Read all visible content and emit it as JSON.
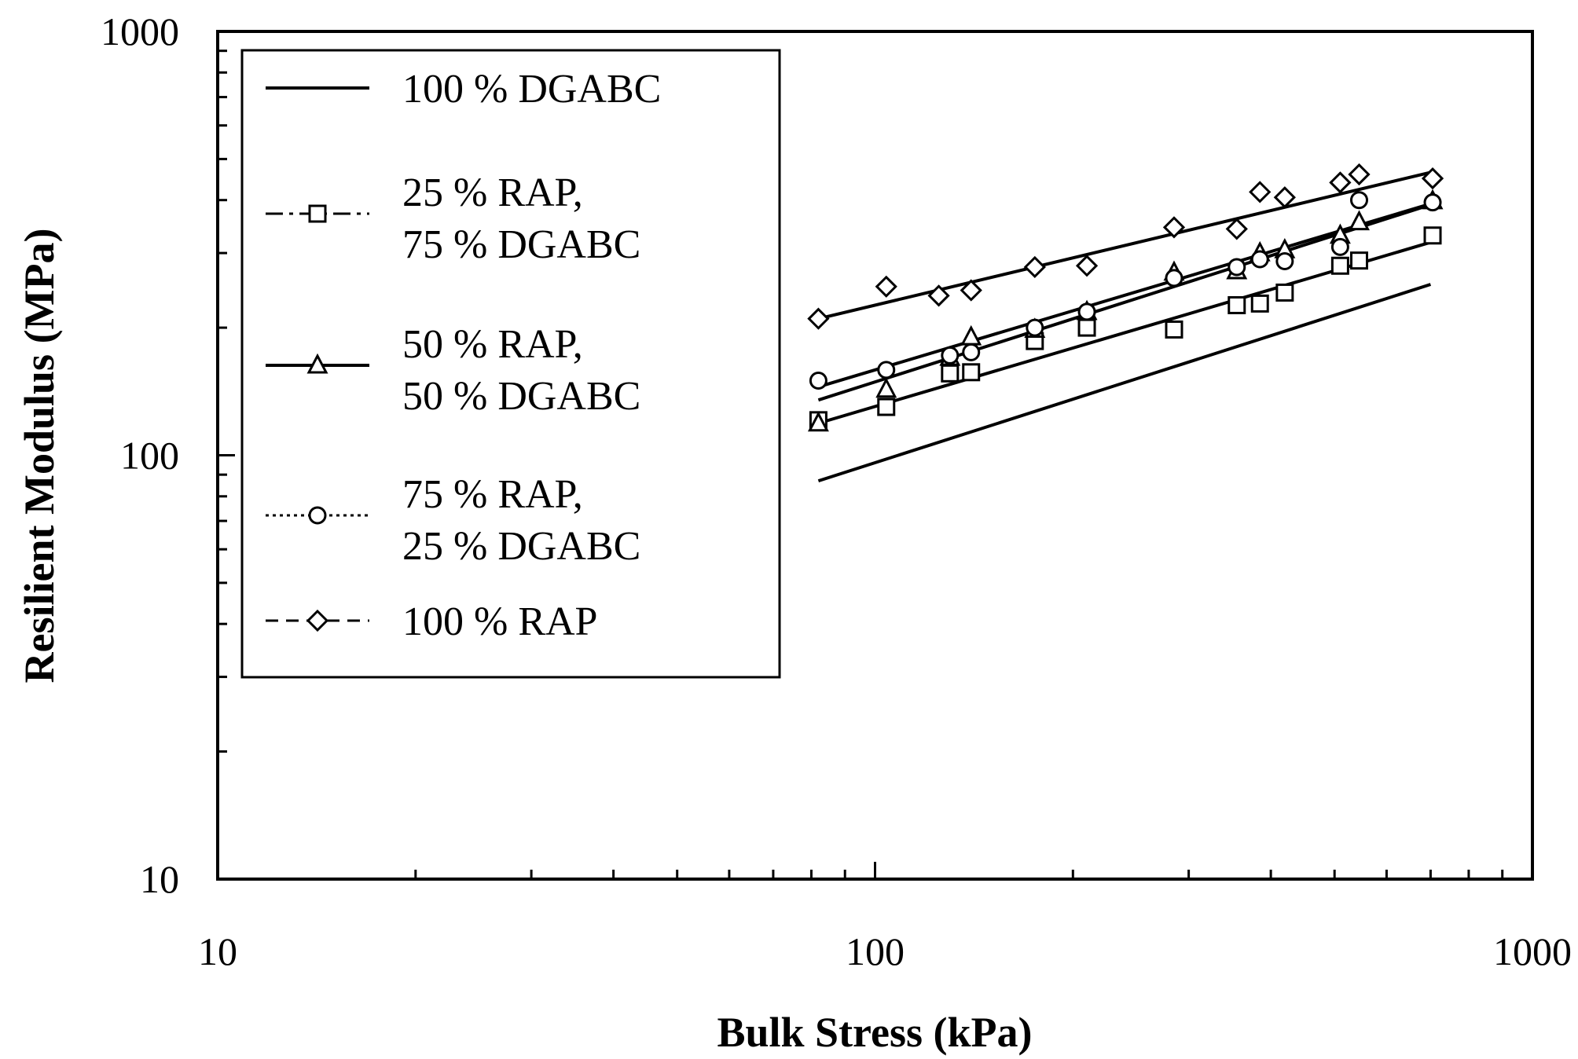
{
  "chart_data": {
    "type": "scatter",
    "title": "",
    "xlabel": "Bulk Stress (kPa)",
    "ylabel": "Resilient Modulus (MPa)",
    "x_scale": "log",
    "y_scale": "log",
    "xlim": [
      10,
      1000
    ],
    "ylim": [
      10,
      1000
    ],
    "x_ticks": [
      "10",
      "100",
      "1000"
    ],
    "y_ticks": [
      "10",
      "100",
      "1000"
    ],
    "grid": false,
    "legend_position": "top-left",
    "series": [
      {
        "name": "100 % DGABC",
        "marker": "none",
        "line_style": "solid",
        "points": [],
        "fit": [
          [
            82,
            87
          ],
          [
            700,
            253
          ]
        ]
      },
      {
        "name": "25 % RAP,\n75 % DGABC",
        "marker": "square",
        "line_style": "dash-dot",
        "points": [
          [
            82,
            121
          ],
          [
            104,
            130
          ],
          [
            130,
            156
          ],
          [
            140,
            157
          ],
          [
            175,
            186
          ],
          [
            210,
            200
          ],
          [
            285,
            198
          ],
          [
            355,
            226
          ],
          [
            385,
            228
          ],
          [
            420,
            242
          ],
          [
            510,
            280
          ],
          [
            545,
            288
          ],
          [
            705,
            330
          ]
        ],
        "fit": [
          [
            82,
            119
          ],
          [
            700,
            318
          ]
        ]
      },
      {
        "name": "50 % RAP,\n50 % DGABC",
        "marker": "triangle",
        "line_style": "solid",
        "points": [
          [
            82,
            119
          ],
          [
            104,
            143
          ],
          [
            130,
            170
          ],
          [
            140,
            190
          ],
          [
            175,
            198
          ],
          [
            210,
            218
          ],
          [
            285,
            270
          ],
          [
            355,
            272
          ],
          [
            385,
            300
          ],
          [
            420,
            305
          ],
          [
            510,
            330
          ],
          [
            545,
            355
          ],
          [
            705,
            398
          ]
        ],
        "fit": [
          [
            82,
            135
          ],
          [
            700,
            390
          ]
        ]
      },
      {
        "name": "75 % RAP,\n25 % DGABC",
        "marker": "circle",
        "line_style": "dotted",
        "points": [
          [
            82,
            150
          ],
          [
            104,
            159
          ],
          [
            130,
            172
          ],
          [
            140,
            175
          ],
          [
            175,
            200
          ],
          [
            210,
            218
          ],
          [
            285,
            262
          ],
          [
            355,
            278
          ],
          [
            385,
            290
          ],
          [
            420,
            287
          ],
          [
            510,
            310
          ],
          [
            545,
            400
          ],
          [
            705,
            395
          ]
        ],
        "fit": [
          [
            82,
            145
          ],
          [
            700,
            392
          ]
        ]
      },
      {
        "name": "100 % RAP",
        "marker": "diamond",
        "line_style": "dashed",
        "points": [
          [
            82,
            210
          ],
          [
            104,
            250
          ],
          [
            125,
            238
          ],
          [
            140,
            245
          ],
          [
            175,
            278
          ],
          [
            210,
            280
          ],
          [
            285,
            345
          ],
          [
            355,
            342
          ],
          [
            385,
            418
          ],
          [
            420,
            406
          ],
          [
            510,
            440
          ],
          [
            545,
            460
          ],
          [
            705,
            450
          ]
        ],
        "fit": [
          [
            82,
            210
          ],
          [
            700,
            465
          ]
        ]
      }
    ]
  }
}
